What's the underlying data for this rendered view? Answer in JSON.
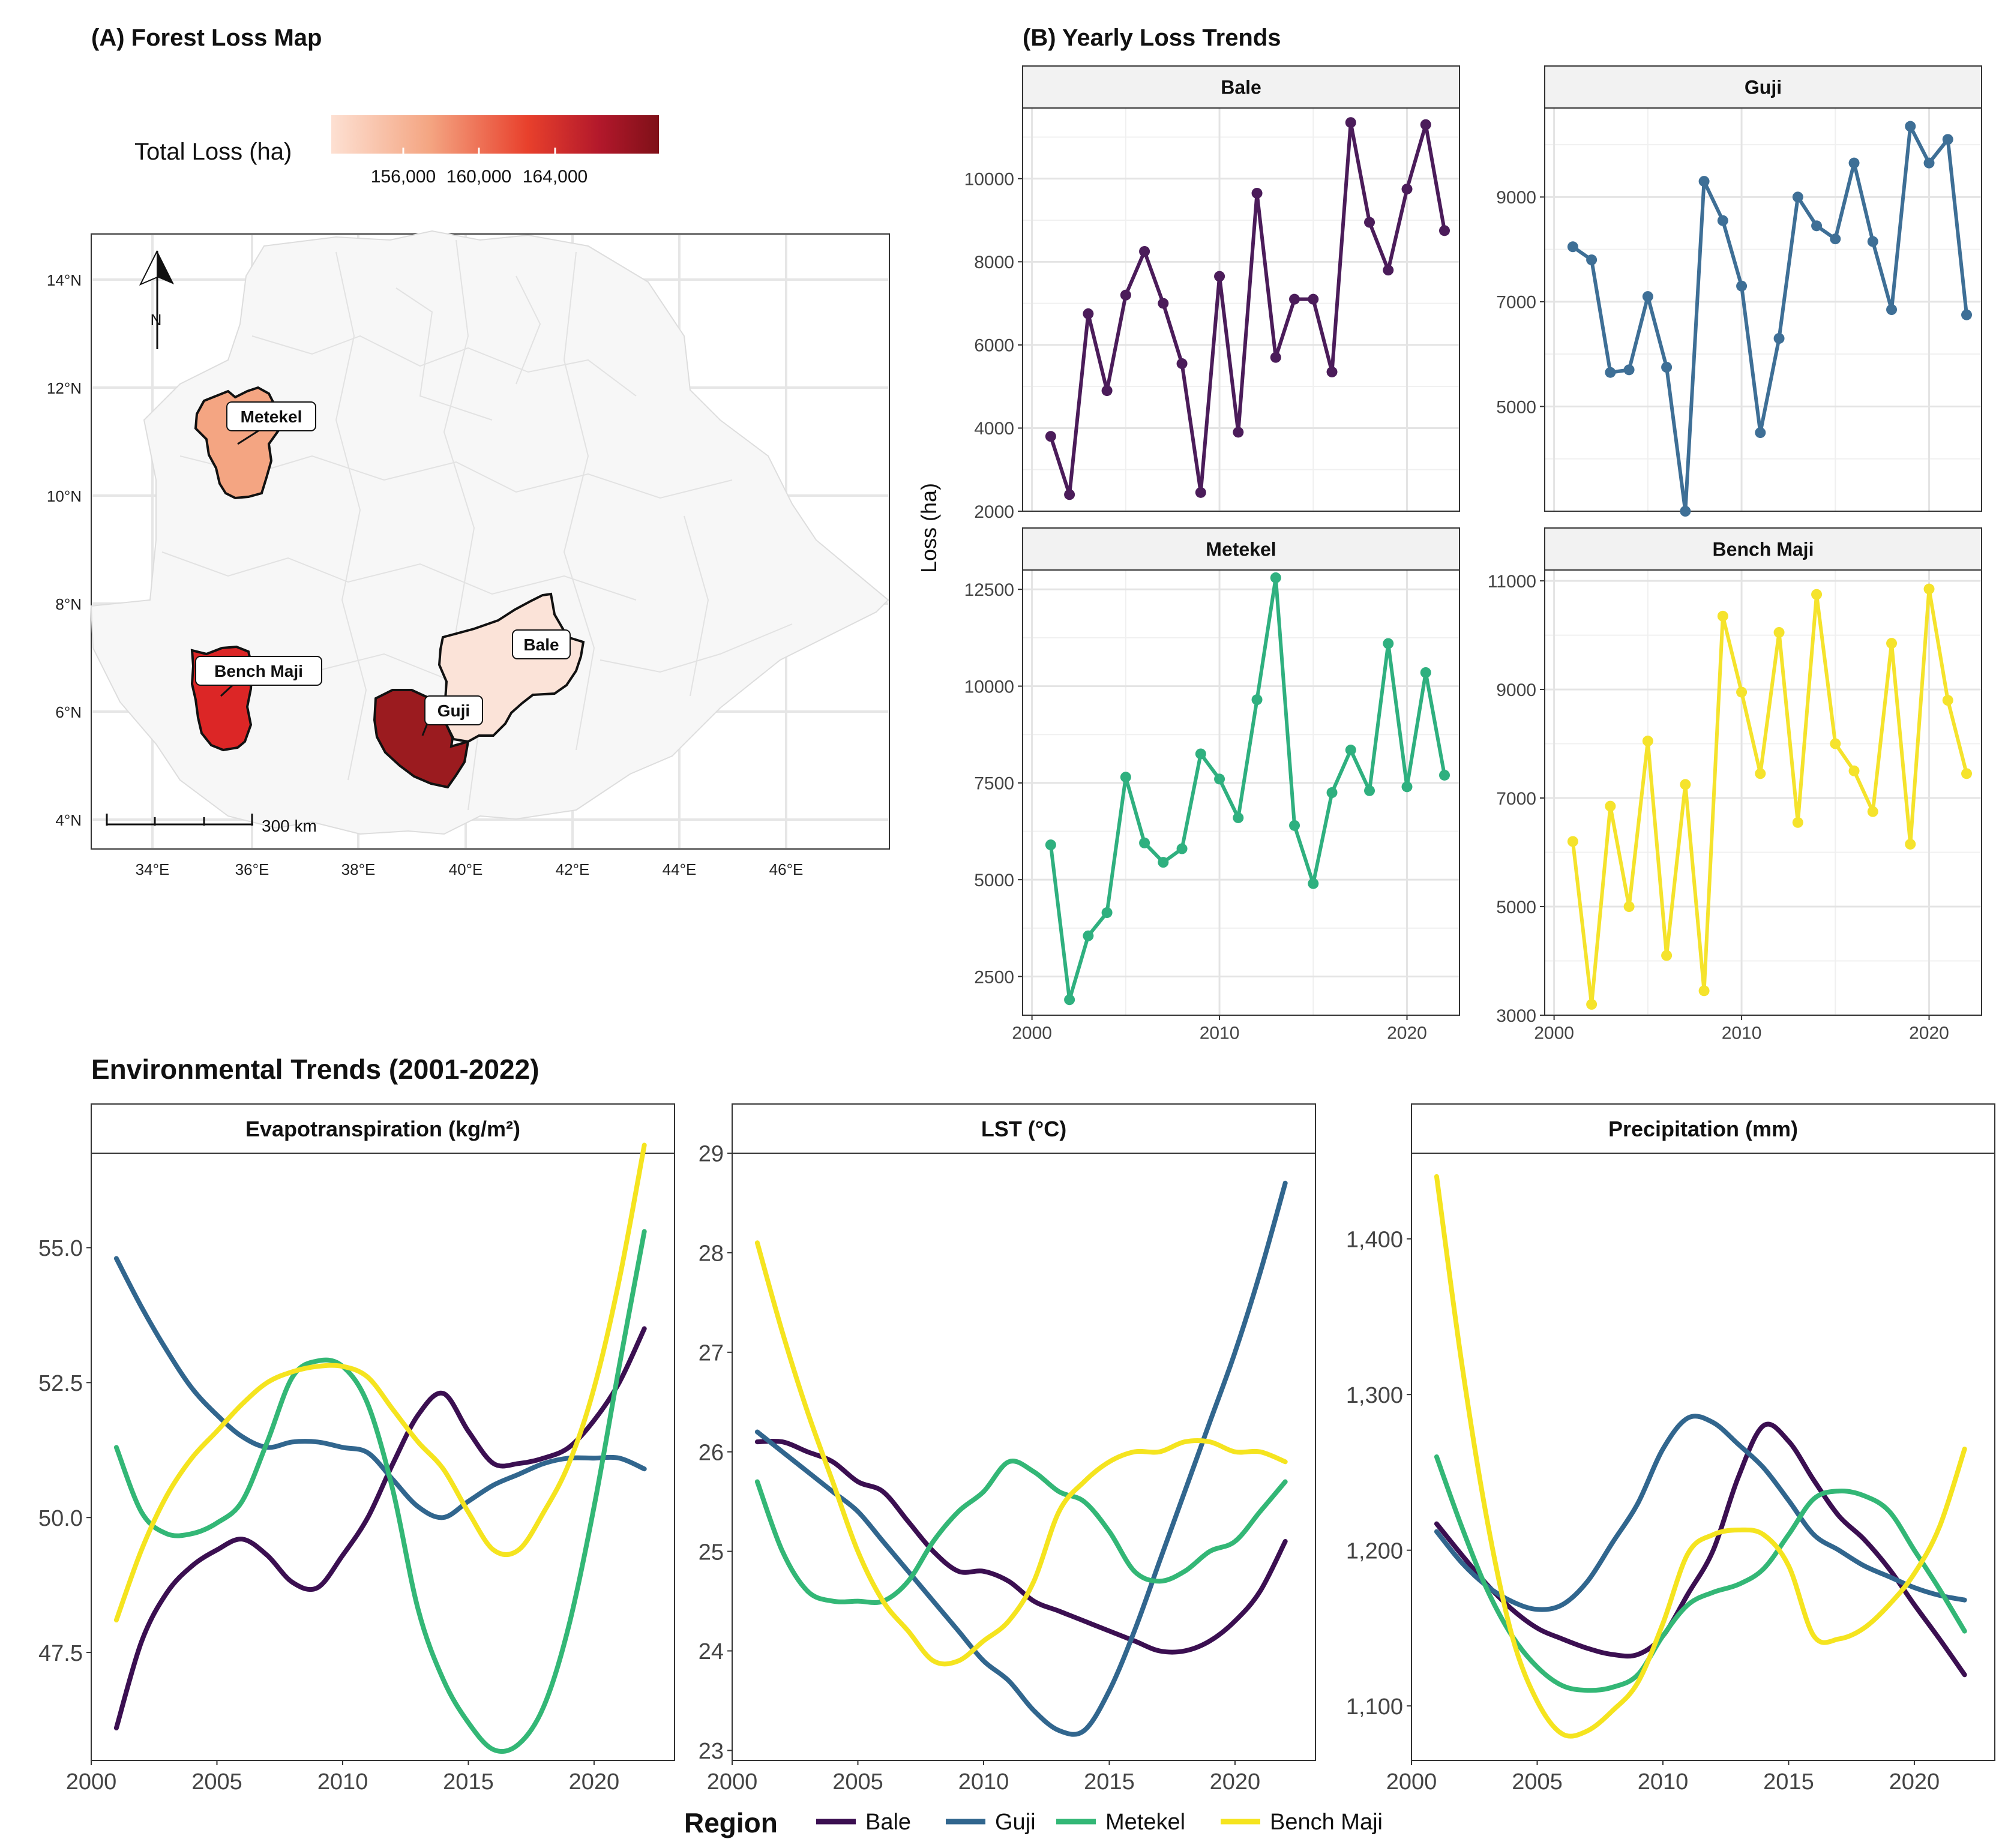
{
  "map": {
    "title": "(A) Forest Loss Map",
    "legend_title": "Total Loss (ha)",
    "legend_ticks": [
      "156,000",
      "160,000",
      "164,000"
    ],
    "scale_label": "300 km",
    "north_label": "N",
    "lat_labels": [
      "14°N",
      "12°N",
      "10°N",
      "8°N",
      "6°N",
      "4°N"
    ],
    "lon_labels": [
      "34°E",
      "36°E",
      "38°E",
      "40°E",
      "42°E",
      "44°E",
      "46°E"
    ],
    "regions": [
      {
        "name": "Metekel",
        "color": "#F4A582"
      },
      {
        "name": "Bench Maji",
        "color": "#DC2626"
      },
      {
        "name": "Guji",
        "color": "#9B1B1F"
      },
      {
        "name": "Bale",
        "color": "#FBE3D8"
      }
    ],
    "gradient": [
      "#FDE0D2",
      "#F4A582",
      "#E8402C",
      "#B2182B",
      "#7F1018"
    ]
  },
  "chart_data": [
    {
      "type": "line",
      "title": "(B) Yearly Loss Trends",
      "ylabel": "Loss (ha)",
      "xlabel": "",
      "x": [
        2001,
        2002,
        2003,
        2004,
        2005,
        2006,
        2007,
        2008,
        2009,
        2010,
        2011,
        2012,
        2013,
        2014,
        2015,
        2016,
        2017,
        2018,
        2019,
        2020,
        2021,
        2022
      ],
      "x_ticks": [
        "2000",
        "2010",
        "2020"
      ],
      "panels": [
        {
          "name": "Bale",
          "color": "#4B1C5A",
          "ylim": [
            2000,
            11700
          ],
          "y_ticks": [
            2000,
            4000,
            6000,
            8000,
            10000
          ],
          "values": [
            3800,
            2400,
            6750,
            4900,
            7200,
            8250,
            7000,
            5550,
            2450,
            7650,
            3900,
            9650,
            5700,
            7100,
            7100,
            5350,
            11350,
            8950,
            7800,
            9750,
            11300,
            8750
          ]
        },
        {
          "name": "Guji",
          "color": "#3E6F96",
          "ylim": [
            3000,
            10700
          ],
          "y_ticks": [
            5000,
            7000,
            9000
          ],
          "values": [
            8050,
            7800,
            5650,
            5700,
            7100,
            5750,
            3000,
            9300,
            8550,
            7300,
            4500,
            6300,
            9000,
            8450,
            8200,
            9650,
            8150,
            6850,
            10350,
            9650,
            10100,
            6750
          ]
        },
        {
          "name": "Metekel",
          "color": "#2FB07F",
          "ylim": [
            1500,
            13000
          ],
          "y_ticks": [
            2500,
            5000,
            7500,
            10000,
            12500
          ],
          "values": [
            5900,
            1900,
            3550,
            4150,
            7650,
            5950,
            5450,
            5800,
            8250,
            7600,
            6600,
            9650,
            12800,
            6400,
            4900,
            7250,
            8350,
            7300,
            11100,
            7400,
            10350,
            7700
          ]
        },
        {
          "name": "Bench Maji",
          "color": "#F5E32C",
          "ylim": [
            3000,
            11200
          ],
          "y_ticks": [
            3000,
            5000,
            7000,
            9000,
            11000
          ],
          "values": [
            6200,
            3200,
            6850,
            5000,
            8050,
            4100,
            7250,
            3450,
            10350,
            8950,
            7450,
            10050,
            6550,
            10750,
            8000,
            7500,
            6750,
            9850,
            6150,
            10850,
            8800,
            7450
          ]
        }
      ]
    },
    {
      "type": "line",
      "title": "Environmental Trends (2001-2022)",
      "xlabel": "",
      "ylabel": "",
      "x_ticks": [
        "2000",
        "2005",
        "2010",
        "2015",
        "2020"
      ],
      "legend": {
        "title": "Region",
        "entries": [
          "Bale",
          "Guji",
          "Metekel",
          "Bench Maji"
        ],
        "position": "bottom"
      },
      "series_colors": {
        "Bale": "#3B0F51",
        "Guji": "#31668E",
        "Metekel": "#33B776",
        "Bench Maji": "#F5E41F"
      },
      "panels": [
        {
          "name": "Evapotranspiration (kg/m²)",
          "ylim": [
            45.5,
            56.75
          ],
          "y_ticks": [
            47.5,
            50.0,
            52.5,
            55.0
          ],
          "y_tick_labels": [
            "47.5",
            "50.0",
            "52.5",
            "55.0"
          ],
          "series": [
            {
              "name": "Bale",
              "x": [
                2001,
                2002,
                2003,
                2004,
                2005,
                2006,
                2007,
                2008,
                2009,
                2010,
                2011,
                2012,
                2013,
                2014,
                2015,
                2016,
                2017,
                2018,
                2019,
                2020,
                2021,
                2022
              ],
              "values": [
                46.1,
                47.7,
                48.6,
                49.1,
                49.4,
                49.6,
                49.3,
                48.8,
                48.7,
                49.3,
                50.0,
                51.0,
                51.9,
                52.3,
                51.6,
                51.0,
                51.0,
                51.1,
                51.3,
                51.8,
                52.5,
                53.5
              ]
            },
            {
              "name": "Guji",
              "x": [
                2001,
                2002,
                2003,
                2004,
                2005,
                2006,
                2007,
                2008,
                2009,
                2010,
                2011,
                2012,
                2013,
                2014,
                2015,
                2016,
                2017,
                2018,
                2019,
                2020,
                2021,
                2022
              ],
              "values": [
                54.8,
                53.9,
                53.1,
                52.4,
                51.9,
                51.5,
                51.3,
                51.4,
                51.4,
                51.3,
                51.2,
                50.7,
                50.2,
                50.0,
                50.3,
                50.6,
                50.8,
                51.0,
                51.1,
                51.1,
                51.1,
                50.9
              ]
            },
            {
              "name": "Metekel",
              "x": [
                2001,
                2002,
                2003,
                2004,
                2005,
                2006,
                2007,
                2008,
                2009,
                2010,
                2011,
                2012,
                2013,
                2014,
                2015,
                2016,
                2017,
                2018,
                2019,
                2020,
                2021,
                2022
              ],
              "values": [
                51.3,
                50.1,
                49.7,
                49.7,
                49.9,
                50.3,
                51.4,
                52.6,
                52.9,
                52.8,
                52.1,
                50.5,
                48.3,
                47.0,
                46.2,
                45.7,
                45.8,
                46.5,
                48.0,
                50.2,
                52.8,
                55.3
              ]
            },
            {
              "name": "Bench Maji",
              "x": [
                2001,
                2002,
                2003,
                2004,
                2005,
                2006,
                2007,
                2008,
                2009,
                2010,
                2011,
                2012,
                2013,
                2014,
                2015,
                2016,
                2017,
                2018,
                2019,
                2020,
                2021,
                2022
              ],
              "values": [
                48.1,
                49.4,
                50.4,
                51.1,
                51.6,
                52.1,
                52.5,
                52.7,
                52.8,
                52.8,
                52.6,
                52.0,
                51.4,
                50.9,
                50.1,
                49.4,
                49.4,
                50.1,
                51.0,
                52.4,
                54.4,
                56.9
              ]
            }
          ]
        },
        {
          "name": "LST (°C)",
          "ylim": [
            22.9,
            29.0
          ],
          "y_ticks": [
            23,
            24,
            25,
            26,
            27,
            28,
            29
          ],
          "y_tick_labels": [
            "23",
            "24",
            "25",
            "26",
            "27",
            "28",
            "29"
          ],
          "series": [
            {
              "name": "Bale",
              "x": [
                2001,
                2002,
                2003,
                2004,
                2005,
                2006,
                2007,
                2008,
                2009,
                2010,
                2011,
                2012,
                2013,
                2014,
                2015,
                2016,
                2017,
                2018,
                2019,
                2020,
                2021,
                2022
              ],
              "values": [
                26.1,
                26.1,
                26.0,
                25.9,
                25.7,
                25.6,
                25.3,
                25.0,
                24.8,
                24.8,
                24.7,
                24.5,
                24.4,
                24.3,
                24.2,
                24.1,
                24.0,
                24.0,
                24.1,
                24.3,
                24.6,
                25.1
              ]
            },
            {
              "name": "Guji",
              "x": [
                2001,
                2002,
                2003,
                2004,
                2005,
                2006,
                2007,
                2008,
                2009,
                2010,
                2011,
                2012,
                2013,
                2014,
                2015,
                2016,
                2017,
                2018,
                2019,
                2020,
                2021,
                2022
              ],
              "values": [
                26.2,
                26.0,
                25.8,
                25.6,
                25.4,
                25.1,
                24.8,
                24.5,
                24.2,
                23.9,
                23.7,
                23.4,
                23.2,
                23.2,
                23.6,
                24.2,
                24.9,
                25.6,
                26.3,
                27.0,
                27.8,
                28.7
              ]
            },
            {
              "name": "Metekel",
              "x": [
                2001,
                2002,
                2003,
                2004,
                2005,
                2006,
                2007,
                2008,
                2009,
                2010,
                2011,
                2012,
                2013,
                2014,
                2015,
                2016,
                2017,
                2018,
                2019,
                2020,
                2021,
                2022
              ],
              "values": [
                25.7,
                25.0,
                24.6,
                24.5,
                24.5,
                24.5,
                24.7,
                25.1,
                25.4,
                25.6,
                25.9,
                25.8,
                25.6,
                25.5,
                25.2,
                24.8,
                24.7,
                24.8,
                25.0,
                25.1,
                25.4,
                25.7
              ]
            },
            {
              "name": "Bench Maji",
              "x": [
                2001,
                2002,
                2003,
                2004,
                2005,
                2006,
                2007,
                2008,
                2009,
                2010,
                2011,
                2012,
                2013,
                2014,
                2015,
                2016,
                2017,
                2018,
                2019,
                2020,
                2021,
                2022
              ],
              "values": [
                28.1,
                27.2,
                26.4,
                25.7,
                25.0,
                24.5,
                24.2,
                23.9,
                23.9,
                24.1,
                24.3,
                24.7,
                25.4,
                25.7,
                25.9,
                26.0,
                26.0,
                26.1,
                26.1,
                26.0,
                26.0,
                25.9
              ]
            }
          ]
        },
        {
          "name": "Precipitation (mm)",
          "ylim": [
            1065,
            1455
          ],
          "y_ticks": [
            1100,
            1200,
            1300,
            1400
          ],
          "y_tick_labels": [
            "1,100",
            "1,200",
            "1,300",
            "1,400"
          ],
          "series": [
            {
              "name": "Bale",
              "x": [
                2001,
                2002,
                2003,
                2004,
                2005,
                2006,
                2007,
                2008,
                2009,
                2010,
                2011,
                2012,
                2013,
                2014,
                2015,
                2016,
                2017,
                2018,
                2019,
                2020,
                2021,
                2022
              ],
              "values": [
                1217,
                1197,
                1178,
                1162,
                1150,
                1143,
                1137,
                1133,
                1133,
                1145,
                1172,
                1200,
                1247,
                1280,
                1270,
                1245,
                1222,
                1207,
                1188,
                1165,
                1143,
                1120
              ]
            },
            {
              "name": "Guji",
              "x": [
                2001,
                2002,
                2003,
                2004,
                2005,
                2006,
                2007,
                2008,
                2009,
                2010,
                2011,
                2012,
                2013,
                2014,
                2015,
                2016,
                2017,
                2018,
                2019,
                2020,
                2021,
                2022
              ],
              "values": [
                1212,
                1192,
                1177,
                1167,
                1162,
                1165,
                1180,
                1205,
                1230,
                1265,
                1285,
                1282,
                1268,
                1253,
                1232,
                1210,
                1200,
                1190,
                1183,
                1176,
                1171,
                1168
              ]
            },
            {
              "name": "Metekel",
              "x": [
                2001,
                2002,
                2003,
                2004,
                2005,
                2006,
                2007,
                2008,
                2009,
                2010,
                2011,
                2012,
                2013,
                2014,
                2015,
                2016,
                2017,
                2018,
                2019,
                2020,
                2021,
                2022
              ],
              "values": [
                1260,
                1215,
                1175,
                1145,
                1125,
                1113,
                1110,
                1112,
                1120,
                1145,
                1165,
                1173,
                1178,
                1188,
                1210,
                1233,
                1238,
                1235,
                1225,
                1200,
                1175,
                1148
              ]
            },
            {
              "name": "Bench Maji",
              "x": [
                2001,
                2002,
                2003,
                2004,
                2005,
                2006,
                2007,
                2008,
                2009,
                2010,
                2011,
                2012,
                2013,
                2014,
                2015,
                2016,
                2017,
                2018,
                2019,
                2020,
                2021,
                2022
              ],
              "values": [
                1440,
                1320,
                1220,
                1145,
                1103,
                1082,
                1084,
                1097,
                1115,
                1153,
                1198,
                1210,
                1213,
                1210,
                1190,
                1145,
                1143,
                1150,
                1165,
                1185,
                1215,
                1265
              ]
            }
          ]
        }
      ]
    }
  ]
}
